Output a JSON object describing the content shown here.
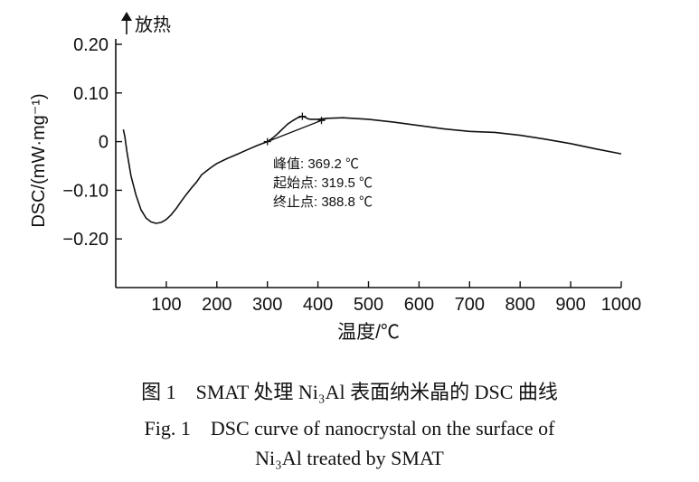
{
  "chart_data": {
    "type": "line",
    "title": "",
    "xlabel": "温度/℃",
    "ylabel": "DSC/(mW·mg⁻¹)",
    "direction_label": "放热",
    "xlim": [
      0,
      1000
    ],
    "ylim": [
      -0.3,
      0.2
    ],
    "xticks": [
      100,
      200,
      300,
      400,
      500,
      600,
      700,
      800,
      900,
      1000
    ],
    "yticks": [
      0.2,
      0.1,
      0,
      -0.1,
      -0.2
    ],
    "ytick_labels": [
      "0.20",
      "0.10",
      "0",
      "−0.10",
      "−0.20"
    ],
    "grid": false,
    "series": [
      {
        "x": [
          15,
          18,
          22,
          30,
          40,
          50,
          60,
          70,
          80,
          90,
          100,
          110,
          120,
          130,
          140,
          150,
          160,
          170,
          180,
          190,
          200,
          220,
          240,
          260,
          280,
          300,
          310,
          320,
          330,
          340,
          350,
          360,
          369,
          375,
          380,
          385,
          390,
          400,
          420,
          450,
          500,
          550,
          600,
          650,
          700,
          750,
          800,
          850,
          900,
          950,
          1000
        ],
        "y": [
          0.025,
          0.01,
          -0.02,
          -0.07,
          -0.11,
          -0.14,
          -0.157,
          -0.165,
          -0.168,
          -0.166,
          -0.16,
          -0.15,
          -0.137,
          -0.122,
          -0.108,
          -0.095,
          -0.083,
          -0.068,
          -0.06,
          -0.052,
          -0.045,
          -0.035,
          -0.026,
          -0.017,
          -0.008,
          0.0,
          0.007,
          0.016,
          0.026,
          0.036,
          0.043,
          0.049,
          0.052,
          0.05,
          0.047,
          0.046,
          0.046,
          0.046,
          0.048,
          0.049,
          0.046,
          0.04,
          0.033,
          0.026,
          0.021,
          0.019,
          0.013,
          0.005,
          -0.004,
          -0.015,
          -0.025
        ]
      },
      {
        "x": [
          300,
          418
        ],
        "y": [
          0.0,
          0.048
        ]
      }
    ],
    "annotations": [
      {
        "text": "峰值: 369.2 ℃"
      },
      {
        "text": "起始点: 319.5 ℃"
      },
      {
        "text": "终止点: 388.8 ℃"
      }
    ]
  },
  "caption": {
    "zh": "图 1　SMAT 处理 Ni₃Al 表面纳米晶的 DSC 曲线",
    "en_line1": "Fig. 1　DSC curve of nanocrystal on the surface of",
    "en_line2": "Ni₃Al treated by SMAT"
  }
}
